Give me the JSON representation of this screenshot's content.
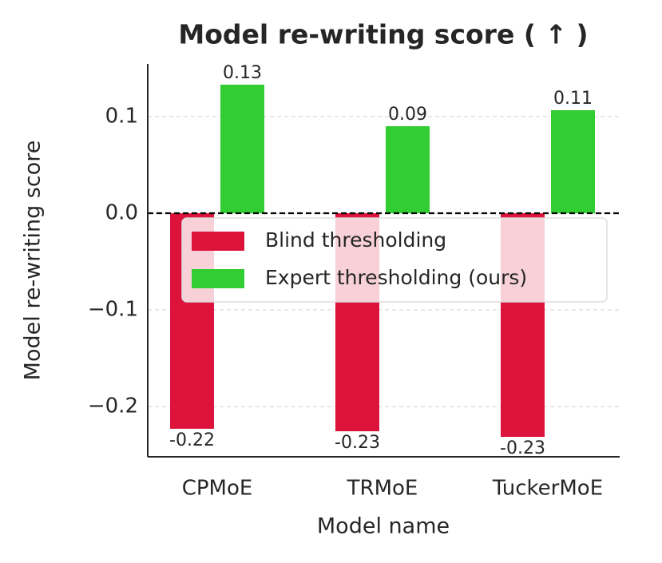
{
  "chart_data": {
    "type": "bar",
    "title": "Model re-writing score ( ↑ )",
    "x_label": "Model name",
    "y_label": "Model re-writing score",
    "categories": [
      "CPMoE",
      "TRMoE",
      "TuckerMoE"
    ],
    "series": [
      {
        "name": "Blind thresholding",
        "color": "#dc143c",
        "values": [
          -0.223,
          -0.2256,
          -0.2314
        ],
        "value_labels": [
          "-0.22",
          "-0.23",
          "-0.23"
        ]
      },
      {
        "name": "Expert thresholding (ours)",
        "color": "#32cd32",
        "values": [
          0.133,
          0.09,
          0.1066
        ],
        "value_labels": [
          "0.13",
          "0.09",
          "0.11"
        ]
      }
    ],
    "ylim": [
      -0.252,
      0.1545
    ],
    "yticks": [
      {
        "value": -0.2,
        "label": "−0.2"
      },
      {
        "value": -0.1,
        "label": "−0.1"
      },
      {
        "value": 0,
        "label": "0.0"
      },
      0.1
    ],
    "hline": 0,
    "grid": true,
    "legend": "upper right"
  }
}
